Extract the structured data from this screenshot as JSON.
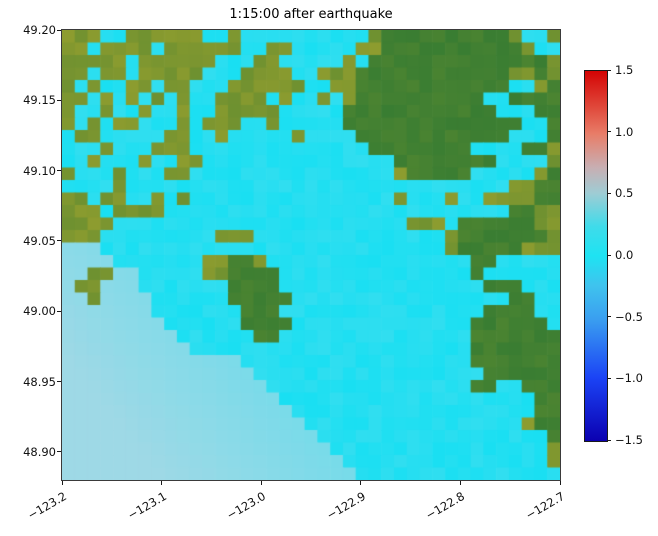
{
  "figure": {
    "title": "1:15:00 after earthquake",
    "background": "#ffffff"
  },
  "chart_data": {
    "type": "heatmap",
    "title": "1:15:00 after earthquake",
    "xlabel": "",
    "ylabel": "",
    "x_range": [
      -123.2,
      -122.7
    ],
    "y_range": [
      48.88,
      49.2
    ],
    "xticks": [
      "−123.2",
      "−123.1",
      "−123.0",
      "−122.9",
      "−122.8",
      "−122.7"
    ],
    "yticks": [
      "49.20",
      "49.15",
      "49.10",
      "49.05",
      "49.00",
      "48.95",
      "48.90"
    ],
    "grid_on": false,
    "colorbar": {
      "vmin": -1.5,
      "vmax": 1.5,
      "ticks": [
        "1.5",
        "1.0",
        "0.5",
        "0.0",
        "−0.5",
        "−1.0",
        "−1.5"
      ],
      "stops": [
        {
          "pos": 0.0,
          "color": "#d40404"
        },
        {
          "pos": 0.1,
          "color": "#e04a3c"
        },
        {
          "pos": 0.17,
          "color": "#e87d68"
        },
        {
          "pos": 0.26,
          "color": "#c8aeb2"
        },
        {
          "pos": 0.33,
          "color": "#9fccd4"
        },
        {
          "pos": 0.42,
          "color": "#3fdbea"
        },
        {
          "pos": 0.5,
          "color": "#1ee3f2"
        },
        {
          "pos": 0.58,
          "color": "#3fc3ee"
        },
        {
          "pos": 0.67,
          "color": "#3a9ff0"
        },
        {
          "pos": 0.83,
          "color": "#1b43f5"
        },
        {
          "pos": 1.0,
          "color": "#0b00b0"
        }
      ]
    },
    "palette": {
      "water_pale": "#9ed9e6",
      "water_cyan": "#19dff2",
      "land_olive": "#8d9c2f",
      "land_dark": "#397d32"
    },
    "grid": [
      "oooccoooooocсocccccccсccoddddddddddocco",
      "oocoooocooooooccoocccccoodddddddddddocc",
      "ooooocooooooоccooccccсoоddddddddddddddoo",
      "oocoocooooocccoooocсoooddddddddddddoodo",
      "ococcoocooсccoooooocсooddddddddddddccoddo",
      "oococococoсcoooococсocoddddddddddccddddo",
      "occoccoccoсcooooocоcооddddddddddddcccddd",
      "ococoocccoоoooccocооооddddddddddddddccddd",
      "coocccccooооoccccоoссооddddddddddddcccddoo",
      "cccocccoooооccccccсcссооddddddddccccddoo",
      "ccocccoccooсcccccccсccccооddddddddccccodd",
      "occcocccoocсccccccccсccccоodddddcccccodd",
      "ccccocccccсcccccccccсccccсоооcсcccсooddo",
      "oocooccocoсcccccccccсccccоoccоoccooooddo",
      "ooocoooocccсccccccccсcсcоооооооооооddooo",
      "ooooccccccсcccccccccсcсcсcоoooоddddddooo",
      "oooccccccccоoooсcccccсcсcсcоооodddddddoo",
      "bbbcccccсcсоооооccccсcсcсcооооodddddoooo",
      "bbbbccccccсooddoоcccсcсcсcсоооооddоооооо",
      "bboobbccccсooddddоccсcсcсcсcооооdооооооо",
      "boobbbccccсcоddddоccсcсcсcсcсооооdddоооо",
      "bbobbbbcccсcоdddddоcсcсcсcсcсcсccооddооо",
      "bbbbbbbcccсccоdddооcсcсcсcсcсcсcоddddоо",
      "bbbbbbbbccсccоddddоcсcсcсcсcсcсоddddddо",
      "bbbbbbbbbcсcccоddоccсcсcсcсcсcсоddddddd",
      "bbbbbbbbbbсcсcсооcссcсcсcсcсcсооddddddd",
      "bbbbbbbbbbbbbbсcссccсcсcсcсcсcсоdddddddd",
      "bbbbbbbbbbbbbbbсcсccсcсcсcсcсcсооddddddd",
      "bbbbbbbbbbbbbbbbсcсcсcсcсcсcсcсоddccdddd",
      "bbbbbbbbbbbbbbbbbсccсcсcсcсcсcсcоccccddо",
      "bbbbbbbbbbbbbbbbbbссcсcсcсcсcсccсоccоddd",
      "bbbbbbbbbbbbbbbbbbbсcсcсcсcсcсcсcсcоodddо",
      "bbbbbbbbbbbbbbbbbbbbсcсcсcсcсcсcсcсcооddо",
      "bbbbbbbbbbbbbbbbbbbbbсcсcсcсcсcсcсcсcоodd",
      "bbbbbbbbbbbbbbbbbbbbbbсcсcсcсcсcсcсcсcood",
      "bbbbbbbbbbbbbbbbbbbbbbbсcсcсcсcсcсcсcсcoo"
    ]
  }
}
